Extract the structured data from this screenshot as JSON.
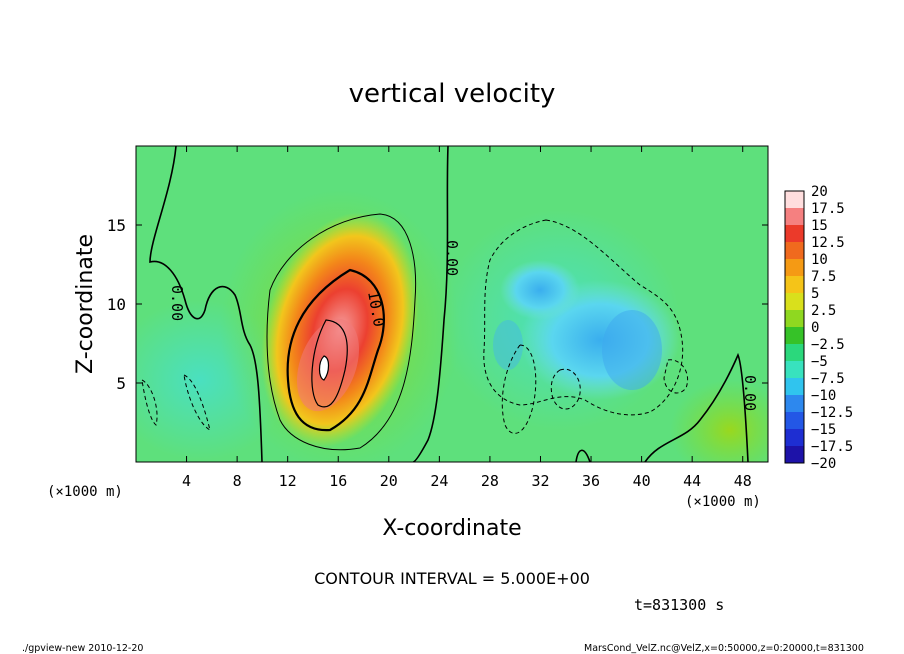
{
  "chart_data": {
    "type": "heatmap",
    "title": "vertical velocity",
    "xlabel": "X-coordinate",
    "ylabel": "Z-coordinate",
    "x_unit_label": "(×1000 m)",
    "y_unit_label": "(×1000 m)",
    "xlim": [
      0,
      50
    ],
    "ylim": [
      0,
      20
    ],
    "x_ticks": [
      "4",
      "8",
      "12",
      "16",
      "20",
      "24",
      "28",
      "32",
      "36",
      "40",
      "44",
      "48"
    ],
    "y_ticks": [
      "5",
      "10",
      "15"
    ],
    "colorbar": {
      "levels": [
        "20",
        "17.5",
        "15",
        "12.5",
        "10",
        "7.5",
        "5",
        "2.5",
        "0",
        "-2.5",
        "-5",
        "-7.5",
        "-10",
        "-12.5",
        "-15",
        "-17.5",
        "-20"
      ],
      "colors": [
        "#ffdede",
        "#f58080",
        "#eb3a2a",
        "#f06a1e",
        "#f59a14",
        "#f5c418",
        "#d9e01c",
        "#8fd820",
        "#36c228",
        "#2bd87c",
        "#38e2be",
        "#30c4ee",
        "#2d88ee",
        "#2357e6",
        "#1e2ed2",
        "#1d12a8",
        "#5a1ba0"
      ]
    },
    "contour_labels": [
      "0.00",
      "0.00",
      "10.0",
      "0.00"
    ],
    "contour_interval_text": "CONTOUR INTERVAL = 5.000E+00",
    "features": [
      {
        "name": "updraft",
        "x": 15,
        "z": 6,
        "max_w": 20
      },
      {
        "name": "downdraft",
        "x": 38,
        "z": 8,
        "min_w": -7.5
      }
    ]
  },
  "time_label": "t=831300 s",
  "footer": {
    "left": "./gpview-new  2010-12-20",
    "right": "MarsCond_VelZ.nc@VelZ,x=0:50000,z=0:20000,t=831300"
  }
}
